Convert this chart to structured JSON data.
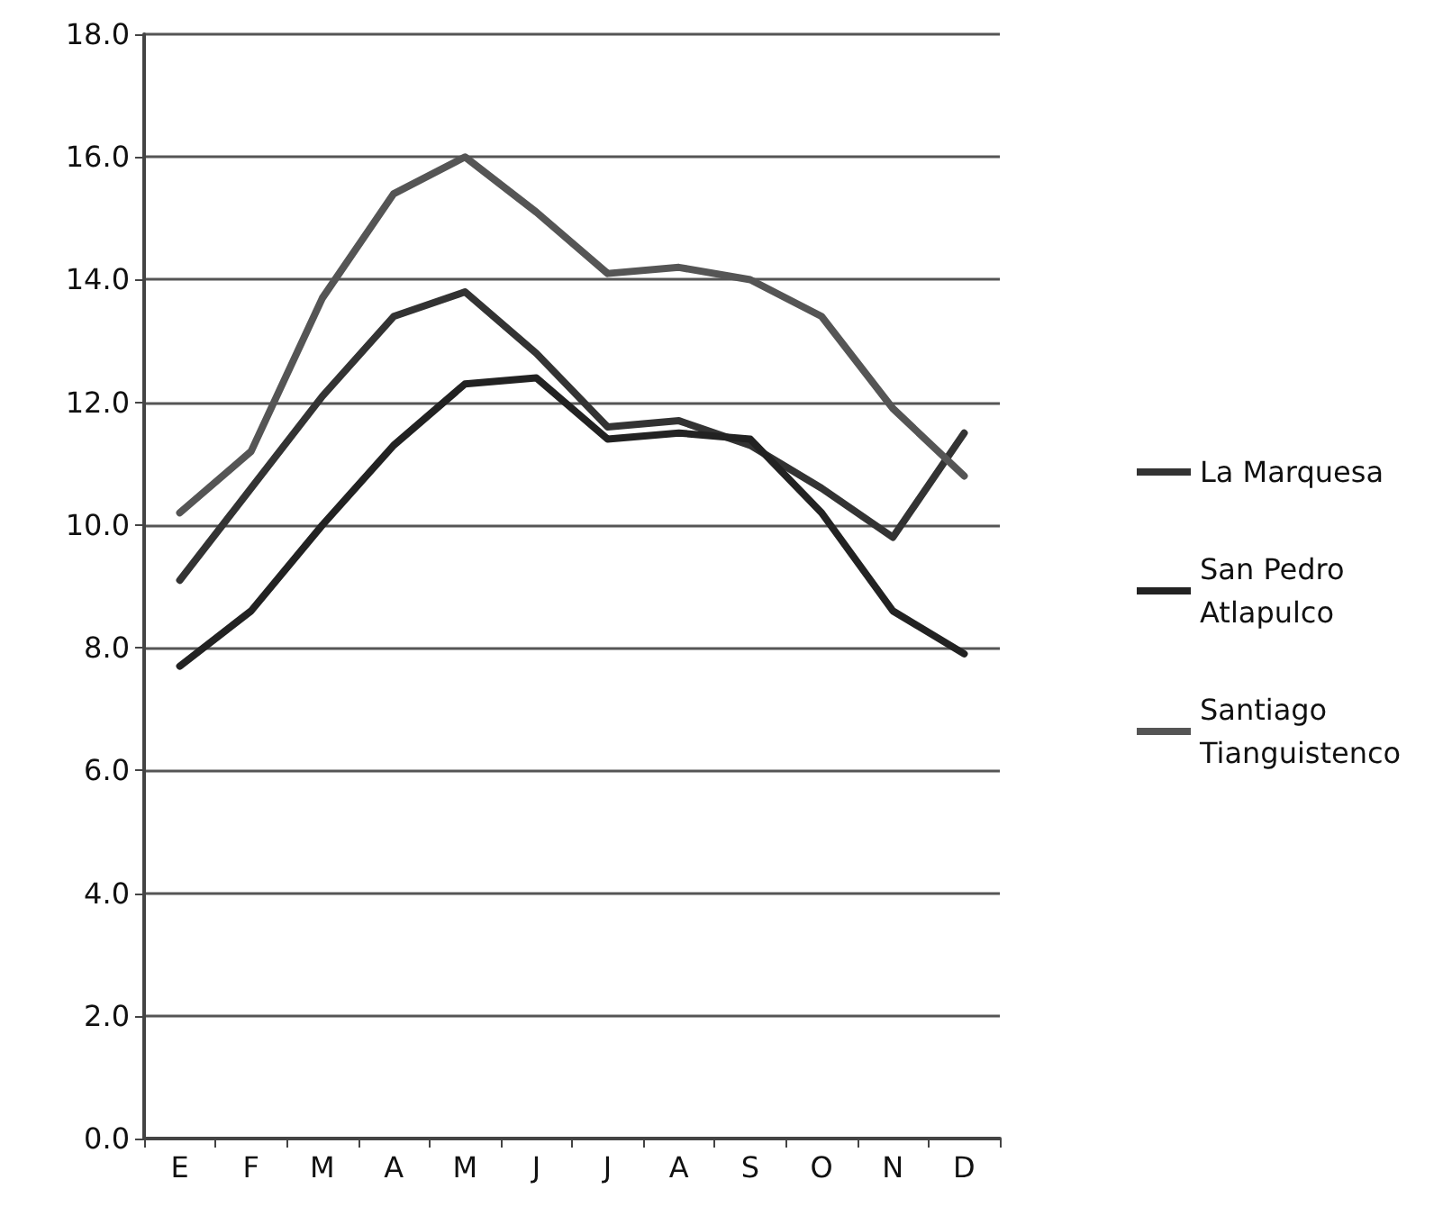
{
  "chart_data": {
    "type": "line",
    "categories": [
      "E",
      "F",
      "M",
      "A",
      "M",
      "J",
      "J",
      "A",
      "S",
      "O",
      "N",
      "D"
    ],
    "series": [
      {
        "name": "La Marquesa",
        "color": "#333333",
        "values": [
          9.1,
          10.6,
          12.1,
          13.4,
          13.8,
          12.8,
          11.6,
          11.7,
          11.3,
          10.6,
          9.8,
          11.5
        ]
      },
      {
        "name": "San Pedro Atlapulco",
        "color": "#222222",
        "values": [
          7.7,
          8.6,
          10.0,
          11.3,
          12.3,
          12.4,
          11.4,
          11.5,
          11.4,
          10.2,
          8.6,
          7.9
        ]
      },
      {
        "name": "Santiago Tianguistenco",
        "color": "#555555",
        "values": [
          10.2,
          11.2,
          13.7,
          15.4,
          16.0,
          15.1,
          14.1,
          14.2,
          14.0,
          13.4,
          11.9,
          10.8
        ]
      }
    ],
    "ylim": [
      0,
      18
    ],
    "yticks": [
      {
        "value": 0,
        "label": "0.0"
      },
      {
        "value": 2,
        "label": "2.0"
      },
      {
        "value": 4,
        "label": "4.0"
      },
      {
        "value": 6,
        "label": "6.0"
      },
      {
        "value": 8,
        "label": "8.0"
      },
      {
        "value": 10,
        "label": "10.0"
      },
      {
        "value": 12,
        "label": "12.0"
      },
      {
        "value": 14,
        "label": "14.0"
      },
      {
        "value": 16,
        "label": "16.0"
      },
      {
        "value": 18,
        "label": "18.0"
      }
    ],
    "grid": "y",
    "legend": "right",
    "marker": "none",
    "line_style": "solid"
  }
}
